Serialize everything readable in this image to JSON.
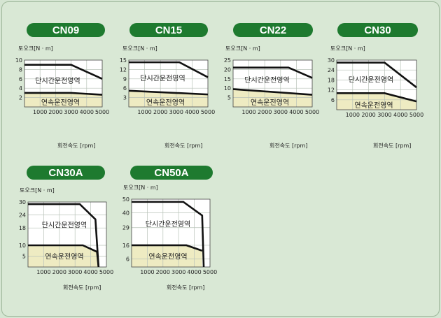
{
  "chart_data": [
    {
      "type": "line",
      "title": "CN09",
      "ylabel": "토오크[N · m]",
      "xlabel": "회전속도 [rpm]",
      "x_ticks": [
        1000,
        2000,
        3000,
        4000,
        5000
      ],
      "y_ticks": [
        2,
        4,
        6,
        8,
        10
      ],
      "xlim": [
        0,
        5000
      ],
      "ylim": [
        0,
        10
      ],
      "regions": {
        "intermittent": "단시간운전영역",
        "continuous": "연속운전영역"
      },
      "series": [
        {
          "role": "intermittent",
          "points": [
            [
              0,
              9
            ],
            [
              3000,
              9
            ],
            [
              5000,
              6
            ]
          ]
        },
        {
          "role": "continuous",
          "points": [
            [
              0,
              3
            ],
            [
              3000,
              3
            ],
            [
              5000,
              2.6
            ]
          ]
        }
      ]
    },
    {
      "type": "line",
      "title": "CN15",
      "ylabel": "토오크[N · m]",
      "xlabel": "회전속도 [rpm]",
      "x_ticks": [
        1000,
        2000,
        3000,
        4000,
        5000
      ],
      "y_ticks": [
        3,
        6,
        9,
        12,
        15
      ],
      "xlim": [
        0,
        5000
      ],
      "ylim": [
        0,
        15
      ],
      "regions": {
        "intermittent": "단시간운전영역",
        "continuous": "연속운전영역"
      },
      "series": [
        {
          "role": "intermittent",
          "points": [
            [
              0,
              14.3
            ],
            [
              3200,
              14.3
            ],
            [
              5000,
              9.5
            ]
          ]
        },
        {
          "role": "continuous",
          "points": [
            [
              0,
              5.2
            ],
            [
              5000,
              4
            ]
          ]
        }
      ]
    },
    {
      "type": "line",
      "title": "CN22",
      "ylabel": "토오크[N · m]",
      "xlabel": "회전속도 [rpm]",
      "x_ticks": [
        1000,
        2000,
        3000,
        4000,
        5000
      ],
      "y_ticks": [
        5,
        10,
        15,
        20,
        25
      ],
      "xlim": [
        0,
        5000
      ],
      "ylim": [
        0,
        25
      ],
      "regions": {
        "intermittent": "단시간운전영역",
        "continuous": "연속운전영역"
      },
      "series": [
        {
          "role": "intermittent",
          "points": [
            [
              0,
              21
            ],
            [
              3500,
              21
            ],
            [
              5000,
              15.5
            ]
          ]
        },
        {
          "role": "continuous",
          "points": [
            [
              0,
              9.5
            ],
            [
              5000,
              6.5
            ]
          ]
        }
      ]
    },
    {
      "type": "line",
      "title": "CN30",
      "ylabel": "토오크[N · m]",
      "xlabel": "회전속도 [rpm]",
      "x_ticks": [
        1000,
        2000,
        3000,
        4000,
        5000
      ],
      "y_ticks": [
        6,
        12,
        18,
        24,
        30
      ],
      "xlim": [
        0,
        5000
      ],
      "ylim": [
        0,
        30
      ],
      "regions": {
        "intermittent": "단시간운전영역",
        "continuous": "연속운전영역"
      },
      "series": [
        {
          "role": "intermittent",
          "points": [
            [
              0,
              28.5
            ],
            [
              3000,
              28.5
            ],
            [
              5000,
              13.5
            ]
          ]
        },
        {
          "role": "continuous",
          "points": [
            [
              0,
              10
            ],
            [
              3000,
              10
            ],
            [
              5000,
              5
            ]
          ]
        }
      ]
    },
    {
      "type": "line",
      "title": "CN30A",
      "ylabel": "토오크[N · m]",
      "xlabel": "회전속도 [rpm]",
      "x_ticks": [
        1000,
        2000,
        3000,
        4000,
        5000
      ],
      "y_ticks": [
        5,
        10,
        18,
        24,
        30
      ],
      "xlim": [
        0,
        5000
      ],
      "ylim": [
        0,
        30
      ],
      "regions": {
        "intermittent": "단시간운전영역",
        "continuous": "연속운전영역"
      },
      "series": [
        {
          "role": "intermittent",
          "points": [
            [
              0,
              29
            ],
            [
              3300,
              29
            ],
            [
              4300,
              22
            ],
            [
              4500,
              0
            ]
          ]
        },
        {
          "role": "continuous",
          "points": [
            [
              0,
              10
            ],
            [
              3500,
              10
            ],
            [
              4400,
              7
            ],
            [
              4500,
              0
            ]
          ]
        }
      ]
    },
    {
      "type": "line",
      "title": "CN50A",
      "ylabel": "토오크[N · m]",
      "xlabel": "회전속도 [rpm]",
      "x_ticks": [
        1000,
        2000,
        3000,
        4000,
        5000
      ],
      "y_ticks": [
        6,
        16,
        29,
        40,
        50
      ],
      "xlim": [
        0,
        5000
      ],
      "ylim": [
        0,
        50
      ],
      "regions": {
        "intermittent": "단시간운전영역",
        "continuous": "연속운전영역"
      },
      "series": [
        {
          "role": "intermittent",
          "points": [
            [
              0,
              48
            ],
            [
              3300,
              48
            ],
            [
              4500,
              38
            ],
            [
              4600,
              0
            ]
          ]
        },
        {
          "role": "continuous",
          "points": [
            [
              0,
              16
            ],
            [
              3500,
              16
            ],
            [
              4500,
              12
            ]
          ]
        }
      ]
    }
  ]
}
